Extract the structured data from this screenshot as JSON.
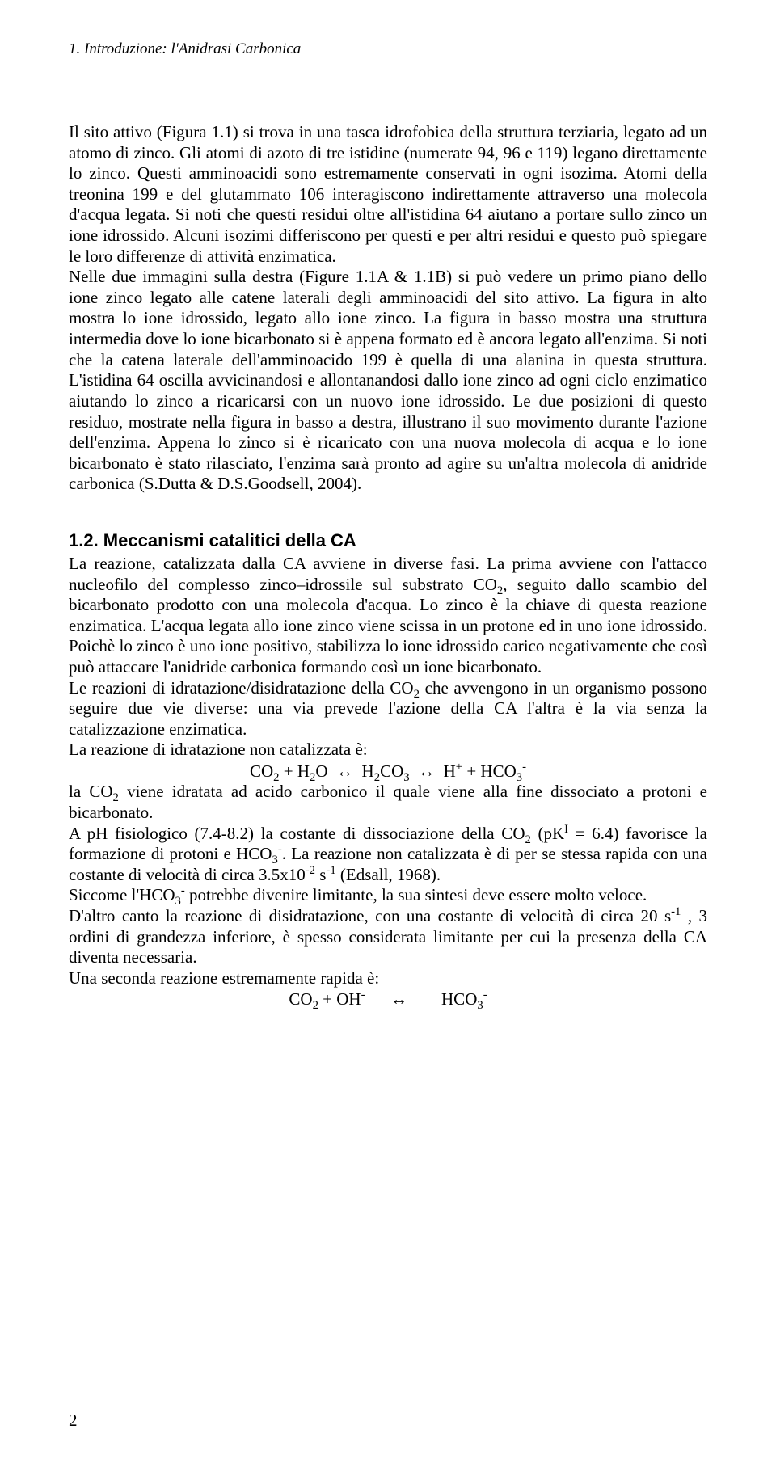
{
  "page": {
    "running_header": "1. Introduzione: l'Anidrasi Carbonica",
    "page_number": "2"
  },
  "section1": {
    "paragraph": "Il sito attivo (Figura 1.1) si trova in una tasca idrofobica della struttura terziaria, legato ad un atomo di zinco. Gli atomi di azoto di tre istidine (numerate 94, 96 e 119) legano direttamente lo zinco. Questi amminoacidi sono estremamente conservati in ogni isozima. Atomi della treonina 199 e del glutammato 106 interagiscono indirettamente attraverso una molecola d'acqua legata. Si noti che questi residui oltre all'istidina 64 aiutano a portare sullo zinco un ione idrossido. Alcuni isozimi differiscono per questi e per altri residui e questo può spiegare le loro differenze di attività enzimatica.",
    "paragraph2": "Nelle due immagini sulla destra (Figure 1.1A & 1.1B) si può vedere un primo piano dello ione zinco legato alle catene laterali degli amminoacidi del sito attivo. La figura in alto mostra lo ione idrossido, legato allo ione zinco. La figura in basso mostra una struttura intermedia dove lo ione bicarbonato si è appena formato ed è ancora legato all'enzima. Si noti che la catena laterale dell'amminoacido 199 è quella di una alanina in questa struttura. L'istidina 64 oscilla avvicinandosi e allontanandosi dallo ione zinco ad ogni ciclo enzimatico aiutando lo zinco a ricaricarsi con un nuovo ione idrossido. Le due posizioni di questo residuo, mostrate nella figura in basso a destra, illustrano il suo movimento durante l'azione dell'enzima. Appena lo zinco si è ricaricato con una nuova molecola di acqua e lo ione bicarbonato è stato rilasciato, l'enzima sarà pronto ad agire su un'altra molecola di anidride carbonica (S.Dutta & D.S.Goodsell, 2004)."
  },
  "section2": {
    "title": "1.2. Meccanismi catalitici della CA",
    "para1_a": "La reazione, catalizzata dalla CA avviene in diverse fasi. La prima avviene con l'attacco nucleofilo del complesso zinco–idrossile sul substrato CO",
    "para1_b": ", seguito dallo scambio del bicarbonato prodotto con una molecola d'acqua. Lo zinco è la chiave di questa reazione enzimatica. L'acqua legata allo ione zinco viene scissa in un protone ed in uno ione idrossido. Poichè lo zinco è uno ione positivo, stabilizza lo ione idrossido carico negativamente che così può attaccare l'anidride carbonica formando così un ione bicarbonato.",
    "para2_a": "Le reazioni di idratazione/disidratazione della CO",
    "para2_b": " che avvengono in un organismo possono seguire due vie diverse: una via prevede l'azione della CA l'altra è la via senza la catalizzazione enzimatica.",
    "para3": "La reazione di idratazione non catalizzata è:",
    "eqn1_html": "CO<sub>2</sub> + H<sub>2</sub>O  ↔  H<sub>2</sub>CO<sub>3</sub>  ↔  H<sup>+</sup> + HCO<sub>3</sub><sup>-</sup>",
    "para4_a": "la CO",
    "para4_b": " viene idratata ad acido carbonico il quale viene alla fine dissociato a protoni e bicarbonato.",
    "para5_a": "A pH fisiologico (7.4-8.2) la costante di dissociazione della CO",
    "para5_b": " (pK",
    "para5_c": " = 6.4) favorisce la formazione di protoni e HCO",
    "para5_d": ". La reazione non catalizzata è di per se stessa rapida con una costante di velocità di circa 3.5x10",
    "para5_e": " s",
    "para5_f": " (Edsall, 1968).",
    "para6_a": "Siccome l'HCO",
    "para6_b": " potrebbe divenire limitante, la sua sintesi deve essere molto veloce.",
    "para7_a": "D'altro canto la reazione di disidratazione, con una costante di velocità di circa 20 s",
    "para7_b": " , 3 ordini di grandezza inferiore, è spesso considerata limitante per cui la presenza della CA diventa necessaria.",
    "para8": "Una seconda reazione estremamente rapida è:",
    "eqn2_html": "CO<sub>2</sub> + OH<sup>-</sup>      ↔        HCO<sub>3</sub><sup>-</sup>"
  },
  "chem": {
    "sub2": "2",
    "sub3": "3",
    "sup_minus": "-",
    "sup_I": "I",
    "sup_m2": "-2",
    "sup_m1": "-1"
  }
}
